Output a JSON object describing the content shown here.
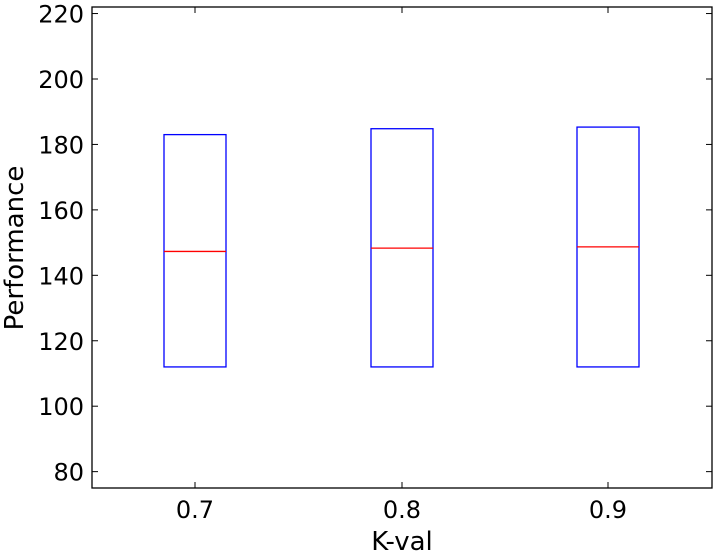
{
  "chart_data": {
    "type": "box",
    "xlabel": "K-val",
    "ylabel": "Performance",
    "ylim": [
      75,
      222
    ],
    "yticks": [
      80,
      100,
      120,
      140,
      160,
      180,
      200,
      220
    ],
    "ytick_labels": [
      "80",
      "100",
      "120",
      "140",
      "160",
      "180",
      "200",
      "220"
    ],
    "categories": [
      "0.7",
      "0.8",
      "0.9"
    ],
    "boxes": [
      {
        "category": "0.7",
        "q1": 112,
        "median": 147.3,
        "q3": 183
      },
      {
        "category": "0.8",
        "q1": 112,
        "median": 148.3,
        "q3": 184.8
      },
      {
        "category": "0.9",
        "q1": 112,
        "median": 148.7,
        "q3": 185.3
      }
    ],
    "colors": {
      "box": "#0000ff",
      "median": "#ff0000",
      "axes": "#000000"
    },
    "grid": false,
    "legend": "none"
  }
}
